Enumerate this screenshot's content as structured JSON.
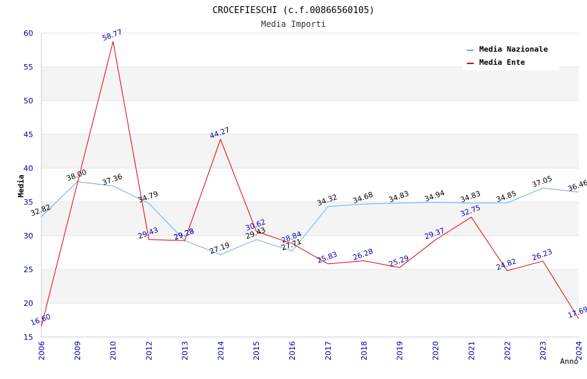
{
  "chart_data": {
    "type": "line",
    "title": "CROCEFIESCHI (c.f.00866560105)",
    "subtitle": "Media Importi",
    "ylabel": "Media",
    "xlabel": "Anno",
    "ylim": [
      15,
      60
    ],
    "yticks": [
      15,
      20,
      25,
      30,
      35,
      40,
      45,
      50,
      55,
      60
    ],
    "categories": [
      "2006",
      "2009",
      "2010",
      "2012",
      "2013",
      "2014",
      "2015",
      "2016",
      "2017",
      "2018",
      "2019",
      "2020",
      "2021",
      "2022",
      "2023",
      "2024"
    ],
    "series": [
      {
        "name": "Media Nazionale",
        "color": "#6aaee8",
        "values": [
          32.82,
          38.0,
          37.36,
          34.79,
          29.28,
          27.19,
          29.43,
          27.71,
          34.32,
          34.68,
          34.83,
          34.94,
          34.83,
          34.85,
          37.05,
          36.46
        ],
        "labels": [
          "32.82",
          "38.00",
          "37.36",
          "34.79",
          "29.28",
          "27.19",
          "29.43",
          "27.71",
          "34.32",
          "34.68",
          "34.83",
          "34.94",
          "34.83",
          "34.85",
          "37.05",
          "36.46"
        ]
      },
      {
        "name": "Media Ente",
        "color": "#e00000",
        "values": [
          16.6,
          null,
          58.77,
          29.43,
          29.28,
          44.27,
          30.62,
          28.84,
          25.83,
          26.28,
          25.29,
          29.37,
          32.75,
          24.82,
          26.23,
          17.69
        ],
        "labels": [
          "16.60",
          "",
          "58.77",
          "29.43",
          "29.28",
          "44.27",
          "30.62",
          "28.84",
          "25.83",
          "26.28",
          "25.29",
          "29.37",
          "32.75",
          "24.82",
          "26.23",
          "17.69"
        ]
      }
    ],
    "grid": true,
    "legend_position": "top-right"
  }
}
